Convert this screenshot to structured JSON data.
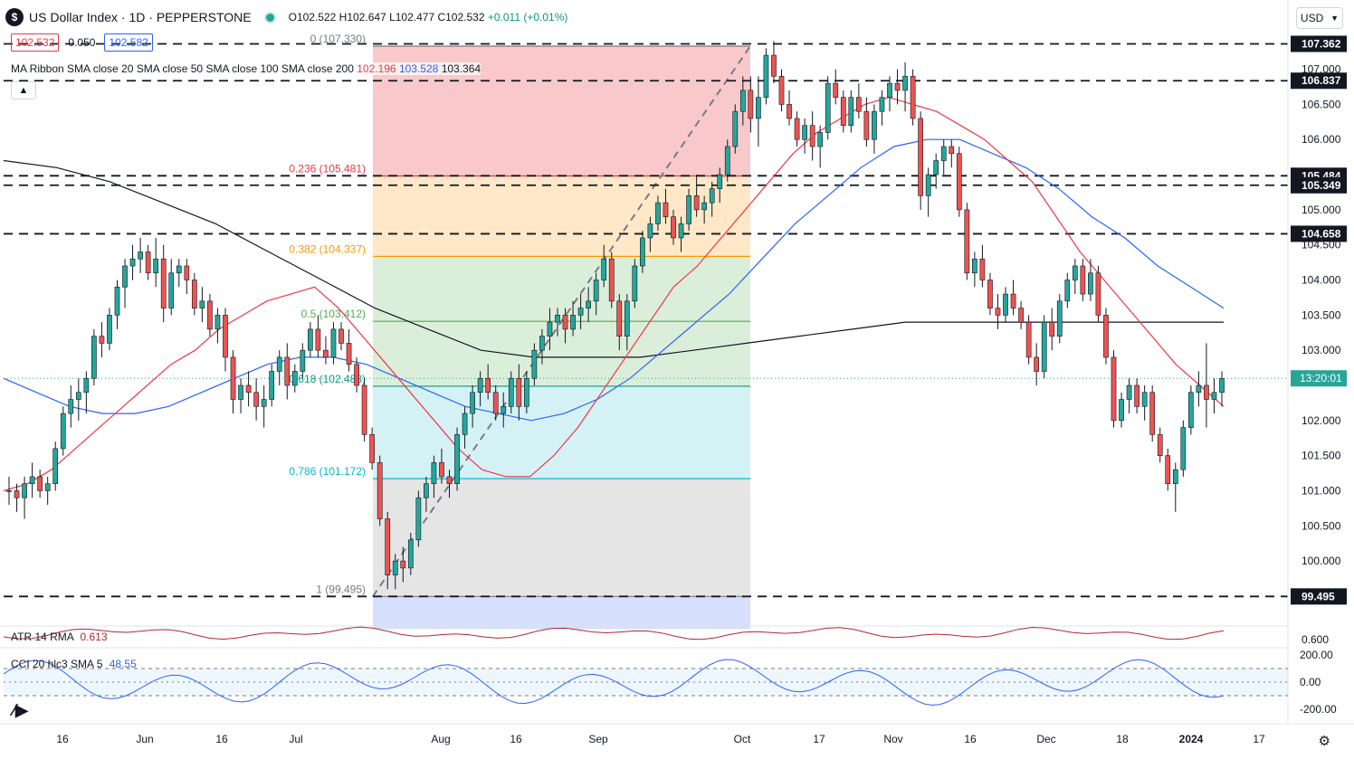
{
  "header": {
    "logo": "$",
    "title": "US Dollar Index · 1D · PEPPERSTONE",
    "open": "O102.522",
    "high": "H102.647",
    "low": "L102.477",
    "close": "C102.532",
    "change": "+0.011 (+0.01%)",
    "bid": "102.532",
    "spread": "0.050",
    "ask": "102.582",
    "currency": "USD"
  },
  "ma_ribbon": {
    "label": "MA Ribbon SMA close 20 SMA close 50 SMA close 100 SMA close 200",
    "v20": "102.196",
    "v50": "103.528",
    "v200": "103.364"
  },
  "atr": {
    "label": "ATR 14 RMA",
    "value": "0.613"
  },
  "cci": {
    "label": "CCI 20 hlc3 SMA 5",
    "value": "48.55"
  },
  "countdown": "13:20:01",
  "colors": {
    "up": "#26a69a",
    "down": "#ef5350",
    "sma20": "#f23645",
    "sma50": "#2962ff",
    "sma200": "#131722"
  },
  "chart_data": {
    "type": "candlestick",
    "y_range": [
      99.1,
      107.6
    ],
    "x_ticks": [
      "16",
      "Jun",
      "16",
      "Jul",
      "Aug",
      "16",
      "Sep",
      "Oct",
      "17",
      "Nov",
      "16",
      "Dec",
      "18",
      "2024",
      "17"
    ],
    "y_ticks": [
      "107.000",
      "106.500",
      "106.000",
      "105.000",
      "104.500",
      "104.000",
      "103.500",
      "103.000",
      "102.000",
      "101.500",
      "101.000",
      "100.500",
      "100.000"
    ],
    "level_labels": [
      "107.362",
      "106.837",
      "105.484",
      "105.349",
      "104.658",
      "99.495"
    ],
    "levels": [
      107.362,
      106.837,
      105.484,
      105.349,
      104.658,
      99.495
    ],
    "fib": {
      "labels": [
        "0 (107.330)",
        "0.236 (105.481)",
        "0.382 (104.337)",
        "0.5 (103.412)",
        "0.618 (102.488)",
        "0.786 (101.172)",
        "1 (99.495)"
      ],
      "levels": [
        107.33,
        105.481,
        104.337,
        103.412,
        102.488,
        101.172,
        99.495
      ],
      "colors": [
        "#f5b5b8",
        "#fde0b4",
        "#cfe8cc",
        "#cfe8cc",
        "#c6eef2",
        "#dcdcdc",
        "#c8d4fb"
      ],
      "line_colors": [
        "#787b86",
        "#f23645",
        "#ff9800",
        "#4caf50",
        "#089981",
        "#00bcd4",
        "#787b86"
      ]
    },
    "candles": [
      [
        101.0,
        101.2,
        100.8,
        101.0
      ],
      [
        101.0,
        101.1,
        100.7,
        100.9
      ],
      [
        100.9,
        101.2,
        100.6,
        101.1
      ],
      [
        101.1,
        101.4,
        100.9,
        101.2
      ],
      [
        101.2,
        101.3,
        100.9,
        101.0
      ],
      [
        101.0,
        101.2,
        100.8,
        101.1
      ],
      [
        101.1,
        101.7,
        101.0,
        101.6
      ],
      [
        101.6,
        102.2,
        101.5,
        102.1
      ],
      [
        102.1,
        102.5,
        101.9,
        102.3
      ],
      [
        102.3,
        102.6,
        102.0,
        102.4
      ],
      [
        102.4,
        102.7,
        102.1,
        102.6
      ],
      [
        102.6,
        103.3,
        102.5,
        103.2
      ],
      [
        103.2,
        103.4,
        102.9,
        103.1
      ],
      [
        103.1,
        103.6,
        103.0,
        103.5
      ],
      [
        103.5,
        104.0,
        103.3,
        103.9
      ],
      [
        103.9,
        104.3,
        103.6,
        104.2
      ],
      [
        104.2,
        104.5,
        104.0,
        104.3
      ],
      [
        104.3,
        104.6,
        104.1,
        104.4
      ],
      [
        104.4,
        104.5,
        104.0,
        104.1
      ],
      [
        104.1,
        104.6,
        103.9,
        104.3
      ],
      [
        104.3,
        104.5,
        103.4,
        103.6
      ],
      [
        103.6,
        104.3,
        103.5,
        104.1
      ],
      [
        104.1,
        104.3,
        103.9,
        104.2
      ],
      [
        104.2,
        104.3,
        103.8,
        104.0
      ],
      [
        104.0,
        104.1,
        103.5,
        103.6
      ],
      [
        103.6,
        103.9,
        103.4,
        103.7
      ],
      [
        103.7,
        103.8,
        103.2,
        103.3
      ],
      [
        103.3,
        103.6,
        103.1,
        103.5
      ],
      [
        103.5,
        103.6,
        102.7,
        102.9
      ],
      [
        102.9,
        103.0,
        102.1,
        102.3
      ],
      [
        102.3,
        102.6,
        102.1,
        102.5
      ],
      [
        102.5,
        102.7,
        102.2,
        102.4
      ],
      [
        102.4,
        102.6,
        102.0,
        102.2
      ],
      [
        102.2,
        102.5,
        101.9,
        102.3
      ],
      [
        102.3,
        102.8,
        102.2,
        102.7
      ],
      [
        102.7,
        103.0,
        102.5,
        102.9
      ],
      [
        102.9,
        103.1,
        102.3,
        102.5
      ],
      [
        102.5,
        102.8,
        102.4,
        102.7
      ],
      [
        102.7,
        103.1,
        102.6,
        103.0
      ],
      [
        103.0,
        103.4,
        102.9,
        103.3
      ],
      [
        103.3,
        103.5,
        102.9,
        103.0
      ],
      [
        103.0,
        103.2,
        102.8,
        102.9
      ],
      [
        102.9,
        103.4,
        102.8,
        103.3
      ],
      [
        103.3,
        103.4,
        103.0,
        103.1
      ],
      [
        103.1,
        103.3,
        102.7,
        102.8
      ],
      [
        102.8,
        102.9,
        102.4,
        102.5
      ],
      [
        102.5,
        102.6,
        101.7,
        101.8
      ],
      [
        101.8,
        101.9,
        101.3,
        101.4
      ],
      [
        101.4,
        101.5,
        100.5,
        100.6
      ],
      [
        100.6,
        100.7,
        99.6,
        99.8
      ],
      [
        99.8,
        100.1,
        99.6,
        100.0
      ],
      [
        100.0,
        100.2,
        99.7,
        99.9
      ],
      [
        99.9,
        100.4,
        99.8,
        100.3
      ],
      [
        100.3,
        101.0,
        100.2,
        100.9
      ],
      [
        100.9,
        101.2,
        100.7,
        101.1
      ],
      [
        101.1,
        101.5,
        100.9,
        101.4
      ],
      [
        101.4,
        101.6,
        101.1,
        101.2
      ],
      [
        101.2,
        101.3,
        100.9,
        101.1
      ],
      [
        101.1,
        101.9,
        101.0,
        101.8
      ],
      [
        101.8,
        102.2,
        101.6,
        102.1
      ],
      [
        102.1,
        102.5,
        101.9,
        102.4
      ],
      [
        102.4,
        102.7,
        102.2,
        102.6
      ],
      [
        102.6,
        102.8,
        102.3,
        102.4
      ],
      [
        102.4,
        102.5,
        102.0,
        102.1
      ],
      [
        102.1,
        102.4,
        101.9,
        102.2
      ],
      [
        102.2,
        102.7,
        102.1,
        102.6
      ],
      [
        102.6,
        102.8,
        102.0,
        102.2
      ],
      [
        102.2,
        102.7,
        102.1,
        102.6
      ],
      [
        102.6,
        103.1,
        102.5,
        103.0
      ],
      [
        103.0,
        103.3,
        102.8,
        103.2
      ],
      [
        103.2,
        103.6,
        103.0,
        103.4
      ],
      [
        103.4,
        103.6,
        103.2,
        103.5
      ],
      [
        103.5,
        103.6,
        103.1,
        103.3
      ],
      [
        103.3,
        103.7,
        103.2,
        103.5
      ],
      [
        103.5,
        103.8,
        103.3,
        103.6
      ],
      [
        103.6,
        103.9,
        103.4,
        103.7
      ],
      [
        103.7,
        104.1,
        103.5,
        104.0
      ],
      [
        104.0,
        104.5,
        103.9,
        104.3
      ],
      [
        104.3,
        104.4,
        103.6,
        103.7
      ],
      [
        103.7,
        103.8,
        103.0,
        103.2
      ],
      [
        103.2,
        103.8,
        103.0,
        103.7
      ],
      [
        103.7,
        104.3,
        103.6,
        104.2
      ],
      [
        104.2,
        104.7,
        104.1,
        104.6
      ],
      [
        104.6,
        104.9,
        104.4,
        104.8
      ],
      [
        104.8,
        105.2,
        104.7,
        105.1
      ],
      [
        105.1,
        105.3,
        104.8,
        104.9
      ],
      [
        104.9,
        105.0,
        104.5,
        104.6
      ],
      [
        104.6,
        104.9,
        104.4,
        104.8
      ],
      [
        104.8,
        105.3,
        104.7,
        105.2
      ],
      [
        105.2,
        105.5,
        104.9,
        105.0
      ],
      [
        105.0,
        105.2,
        104.8,
        105.1
      ],
      [
        105.1,
        105.4,
        104.9,
        105.3
      ],
      [
        105.3,
        105.6,
        105.1,
        105.5
      ],
      [
        105.5,
        106.0,
        105.4,
        105.9
      ],
      [
        105.9,
        106.5,
        105.8,
        106.4
      ],
      [
        106.4,
        106.9,
        106.2,
        106.7
      ],
      [
        106.7,
        106.9,
        106.1,
        106.3
      ],
      [
        106.3,
        106.9,
        105.9,
        106.6
      ],
      [
        106.6,
        107.3,
        106.5,
        107.2
      ],
      [
        107.2,
        107.4,
        106.8,
        106.9
      ],
      [
        106.9,
        107.0,
        106.4,
        106.5
      ],
      [
        106.5,
        106.7,
        106.2,
        106.3
      ],
      [
        106.3,
        106.4,
        105.9,
        106.0
      ],
      [
        106.0,
        106.3,
        105.8,
        106.2
      ],
      [
        106.2,
        106.4,
        105.7,
        105.9
      ],
      [
        105.9,
        106.2,
        105.6,
        106.1
      ],
      [
        106.1,
        106.9,
        106.0,
        106.8
      ],
      [
        106.8,
        107.0,
        106.5,
        106.6
      ],
      [
        106.6,
        106.7,
        106.1,
        106.2
      ],
      [
        106.2,
        106.7,
        106.1,
        106.6
      ],
      [
        106.6,
        106.8,
        106.3,
        106.4
      ],
      [
        106.4,
        106.6,
        105.9,
        106.0
      ],
      [
        106.0,
        106.5,
        105.8,
        106.4
      ],
      [
        106.4,
        106.7,
        106.2,
        106.6
      ],
      [
        106.6,
        106.9,
        106.4,
        106.8
      ],
      [
        106.8,
        107.0,
        106.5,
        106.7
      ],
      [
        106.7,
        107.1,
        106.4,
        106.9
      ],
      [
        106.9,
        107.0,
        106.2,
        106.3
      ],
      [
        106.3,
        106.4,
        105.0,
        105.2
      ],
      [
        105.2,
        105.6,
        104.9,
        105.5
      ],
      [
        105.5,
        105.8,
        105.3,
        105.7
      ],
      [
        105.7,
        106.0,
        105.5,
        105.9
      ],
      [
        105.9,
        106.0,
        105.6,
        105.8
      ],
      [
        105.8,
        105.9,
        104.9,
        105.0
      ],
      [
        105.0,
        105.1,
        104.0,
        104.1
      ],
      [
        104.1,
        104.4,
        103.9,
        104.3
      ],
      [
        104.3,
        104.5,
        103.9,
        104.0
      ],
      [
        104.0,
        104.1,
        103.5,
        103.6
      ],
      [
        103.6,
        103.8,
        103.3,
        103.5
      ],
      [
        103.5,
        103.9,
        103.4,
        103.8
      ],
      [
        103.8,
        104.0,
        103.5,
        103.6
      ],
      [
        103.6,
        103.7,
        103.3,
        103.4
      ],
      [
        103.4,
        103.5,
        102.8,
        102.9
      ],
      [
        102.9,
        103.1,
        102.5,
        102.7
      ],
      [
        102.7,
        103.5,
        102.6,
        103.4
      ],
      [
        103.4,
        103.6,
        103.0,
        103.2
      ],
      [
        103.2,
        103.8,
        103.1,
        103.7
      ],
      [
        103.7,
        104.1,
        103.6,
        104.0
      ],
      [
        104.0,
        104.3,
        103.8,
        104.2
      ],
      [
        104.2,
        104.3,
        103.7,
        103.8
      ],
      [
        103.8,
        104.3,
        103.7,
        104.1
      ],
      [
        104.1,
        104.2,
        103.4,
        103.5
      ],
      [
        103.5,
        103.6,
        102.8,
        102.9
      ],
      [
        102.9,
        103.0,
        101.9,
        102.0
      ],
      [
        102.0,
        102.4,
        101.9,
        102.3
      ],
      [
        102.3,
        102.6,
        102.1,
        102.5
      ],
      [
        102.5,
        102.6,
        102.1,
        102.2
      ],
      [
        102.2,
        102.5,
        102.0,
        102.4
      ],
      [
        102.4,
        102.5,
        101.7,
        101.8
      ],
      [
        101.8,
        101.9,
        101.4,
        101.5
      ],
      [
        101.5,
        101.6,
        101.0,
        101.1
      ],
      [
        101.1,
        101.4,
        100.7,
        101.3
      ],
      [
        101.3,
        102.0,
        101.2,
        101.9
      ],
      [
        101.9,
        102.5,
        101.8,
        102.4
      ],
      [
        102.4,
        102.7,
        102.2,
        102.5
      ],
      [
        102.5,
        103.1,
        101.9,
        102.3
      ],
      [
        102.3,
        102.6,
        102.1,
        102.4
      ],
      [
        102.4,
        102.7,
        102.2,
        102.6
      ]
    ],
    "sma20": [
      101.0,
      101.1,
      101.3,
      101.6,
      101.9,
      102.2,
      102.5,
      102.8,
      103.0,
      103.3,
      103.5,
      103.7,
      103.8,
      103.9,
      103.6,
      103.2,
      102.8,
      102.4,
      102.0,
      101.6,
      101.3,
      101.2,
      101.2,
      101.5,
      101.9,
      102.4,
      102.9,
      103.4,
      103.9,
      104.2,
      104.6,
      105.0,
      105.4,
      105.8,
      106.1,
      106.3,
      106.5,
      106.6,
      106.5,
      106.4,
      106.2,
      106.0,
      105.7,
      105.4,
      104.9,
      104.4,
      104.0,
      103.6,
      103.2,
      102.8,
      102.5,
      102.2
    ],
    "sma50": [
      102.6,
      102.4,
      102.2,
      102.1,
      102.1,
      102.2,
      102.4,
      102.6,
      102.8,
      102.9,
      102.9,
      102.8,
      102.6,
      102.4,
      102.2,
      102.1,
      102.0,
      102.1,
      102.3,
      102.6,
      103.0,
      103.4,
      103.8,
      104.3,
      104.8,
      105.2,
      105.6,
      105.9,
      106.0,
      106.0,
      105.8,
      105.6,
      105.3,
      104.9,
      104.6,
      104.2,
      103.9,
      103.6
    ],
    "sma200": [
      105.7,
      105.6,
      105.4,
      105.1,
      104.8,
      104.4,
      104.0,
      103.6,
      103.3,
      103.0,
      102.9,
      102.9,
      102.9,
      103.0,
      103.1,
      103.2,
      103.3,
      103.4,
      103.4,
      103.4,
      103.4,
      103.4,
      103.4,
      103.4
    ]
  }
}
